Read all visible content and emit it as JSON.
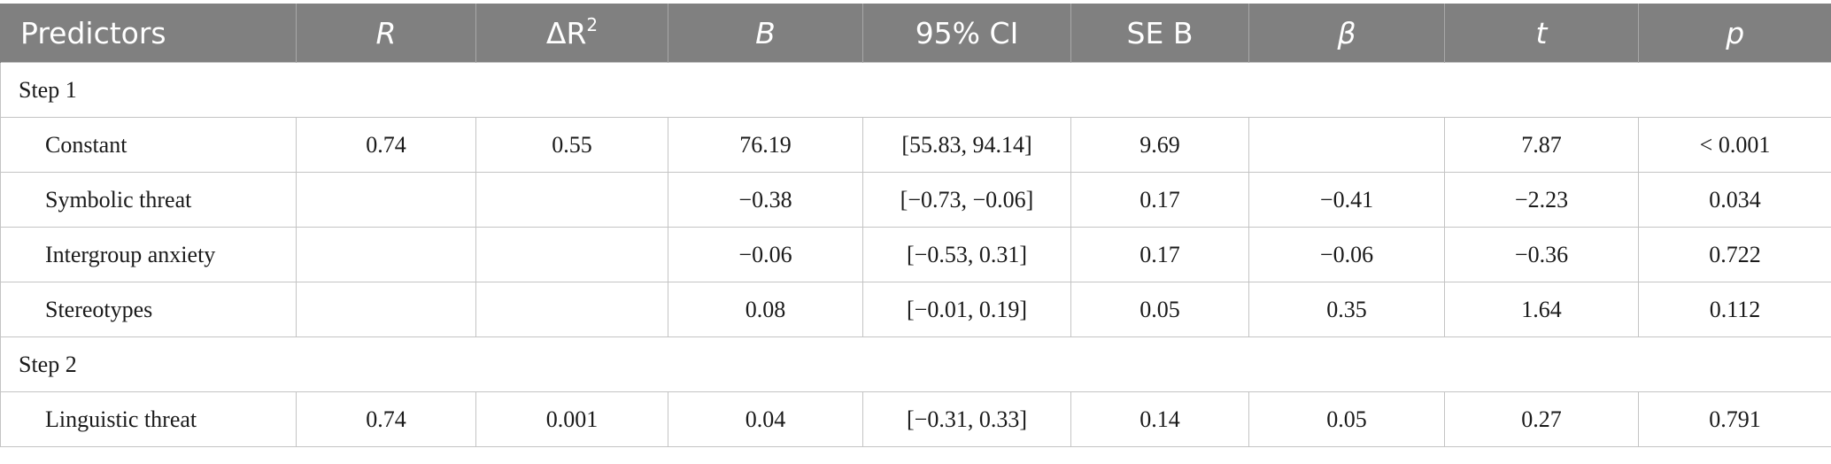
{
  "table": {
    "headers": {
      "predictors": "Predictors",
      "r": "R",
      "delta_r2": "ΔR",
      "delta_r2_sup": "2",
      "b": "B",
      "ci": "95% CI",
      "se_b": "SE B",
      "beta": "β",
      "t": "t",
      "p": "p"
    },
    "steps": [
      {
        "label": "Step 1",
        "rows": [
          {
            "predictor": "Constant",
            "r": "0.74",
            "delta_r2": "0.55",
            "b": "76.19",
            "ci": "[55.83, 94.14]",
            "se_b": "9.69",
            "beta": "",
            "t": "7.87",
            "p": "< 0.001"
          },
          {
            "predictor": "Symbolic threat",
            "r": "",
            "delta_r2": "",
            "b": "−0.38",
            "ci": "[−0.73, −0.06]",
            "se_b": "0.17",
            "beta": "−0.41",
            "t": "−2.23",
            "p": "0.034"
          },
          {
            "predictor": "Intergroup anxiety",
            "r": "",
            "delta_r2": "",
            "b": "−0.06",
            "ci": "[−0.53, 0.31]",
            "se_b": "0.17",
            "beta": "−0.06",
            "t": "−0.36",
            "p": "0.722"
          },
          {
            "predictor": "Stereotypes",
            "r": "",
            "delta_r2": "",
            "b": "0.08",
            "ci": "[−0.01, 0.19]",
            "se_b": "0.05",
            "beta": "0.35",
            "t": "1.64",
            "p": "0.112"
          }
        ]
      },
      {
        "label": "Step 2",
        "rows": [
          {
            "predictor": "Linguistic threat",
            "r": "0.74",
            "delta_r2": "0.001",
            "b": "0.04",
            "ci": "[−0.31, 0.33]",
            "se_b": "0.14",
            "beta": "0.05",
            "t": "0.27",
            "p": "0.791"
          }
        ]
      }
    ]
  }
}
